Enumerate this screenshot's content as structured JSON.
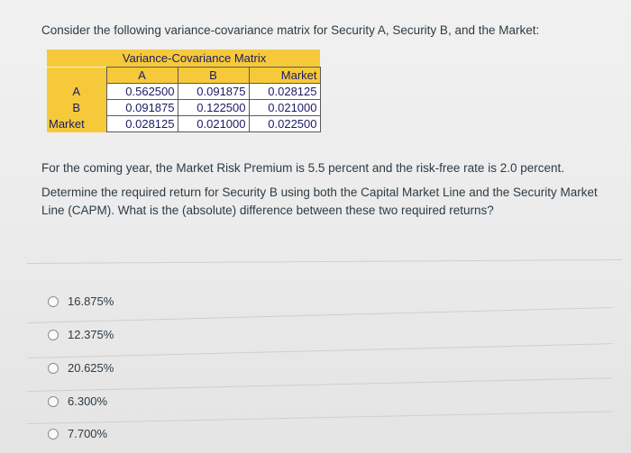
{
  "question": {
    "title": "Consider the following variance-covariance matrix for Security A, Security B, and the Market:",
    "matrix": {
      "caption": "Variance-Covariance Matrix",
      "columns": [
        "A",
        "B",
        "Market"
      ],
      "rows": [
        {
          "label": "A",
          "values": [
            "0.562500",
            "0.091875",
            "0.028125"
          ]
        },
        {
          "label": "B",
          "values": [
            "0.091875",
            "0.122500",
            "0.021000"
          ]
        },
        {
          "label": "Market",
          "values": [
            "0.028125",
            "0.021000",
            "0.022500"
          ]
        }
      ]
    },
    "paragraph_1": "For the coming year, the Market Risk Premium is 5.5 percent and the risk-free rate is 2.0 percent.",
    "paragraph_2": "Determine the required return for Security B using both the Capital Market Line and the Security Market Line (CAPM). What is the (absolute) difference between these two required returns?"
  },
  "answers": [
    {
      "label": "16.875%",
      "selected": false
    },
    {
      "label": "12.375%",
      "selected": false
    },
    {
      "label": "20.625%",
      "selected": false
    },
    {
      "label": "6.300%",
      "selected": false
    },
    {
      "label": "7.700%",
      "selected": false
    }
  ],
  "colors": {
    "matrix_header": "#f6c93a",
    "matrix_text": "#1a1a66",
    "body_text": "#2d3b45",
    "background": "#ececec"
  }
}
